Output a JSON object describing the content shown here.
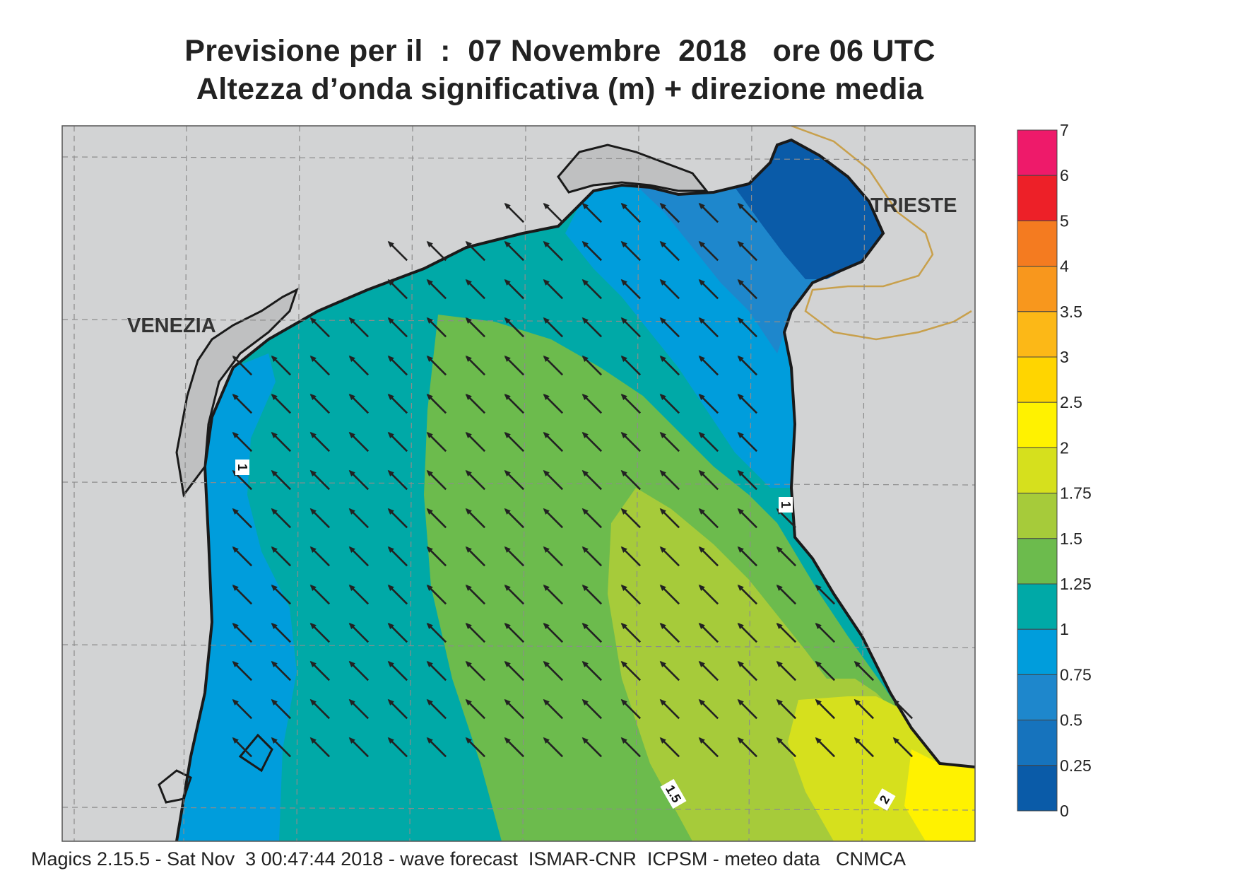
{
  "title_line1": "Previsione per il  :  07 Novembre  2018   ore 06 UTC",
  "title_line2": "Altezza d’onda significativa (m) + direzione media",
  "place_labels": [
    "VENEZIA",
    "TRIESTE"
  ],
  "contour_labels": [
    "1",
    "1",
    "1.5",
    "2"
  ],
  "legend": {
    "levels": [
      "7",
      "6",
      "5",
      "4",
      "3.5",
      "3",
      "2.5",
      "2",
      "1.75",
      "1.5",
      "1.25",
      "1",
      "0.75",
      "0.5",
      "0.25",
      "0"
    ],
    "colors": [
      "#ee1a6a",
      "#ed2028",
      "#f47b20",
      "#f8971d",
      "#fcb817",
      "#ffd500",
      "#fff200",
      "#d6e01d",
      "#a6cb3a",
      "#6cbb4d",
      "#00a9a7",
      "#009ddc",
      "#1e87cc",
      "#1673bd",
      "#0a5ba8"
    ]
  },
  "arrow_direction": "north-west",
  "footer": "Magics 2.15.5 - Sat Nov  3 00:47:44 2018 - wave forecast  ISMAR-CNR  ICPSM - meteo data   CNMCA"
}
